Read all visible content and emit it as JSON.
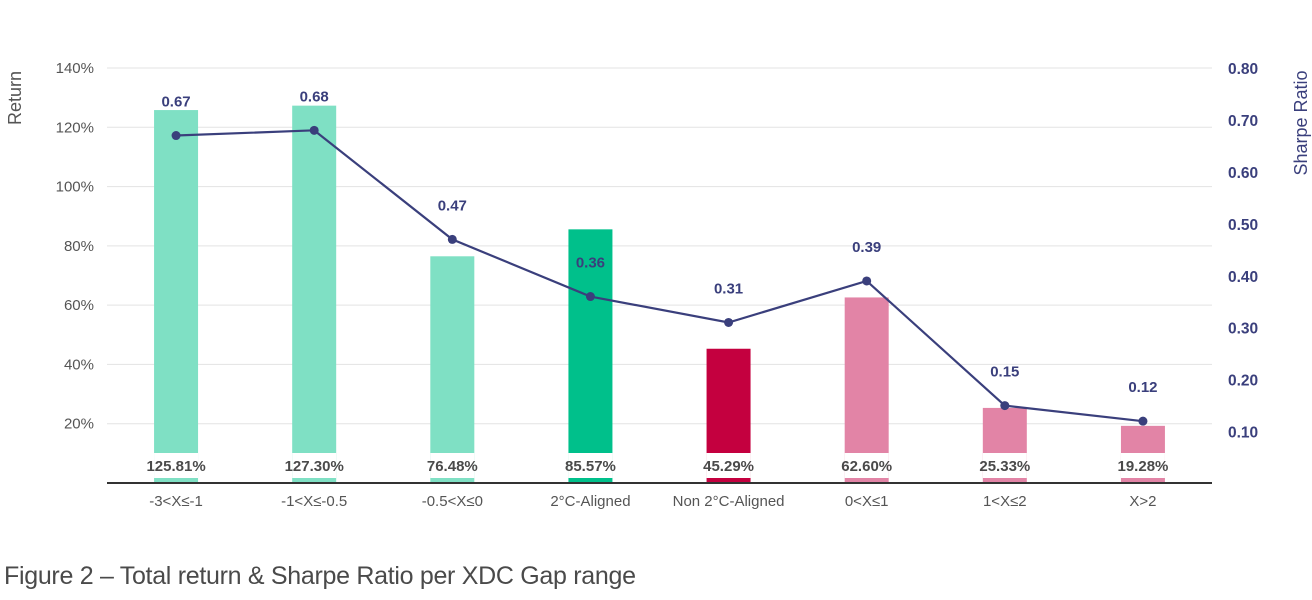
{
  "caption": "Figure 2 – Total return & Sharpe Ratio per XDC Gap range",
  "chart_data": {
    "type": "bar",
    "title": "",
    "categories": [
      "-3<X≤-1",
      "-1<X≤-0.5",
      "-0.5<X≤0",
      "2°C-Aligned",
      "Non 2°C-Aligned",
      "0<X≤1",
      "1<X≤2",
      "X>2"
    ],
    "ylabel": "Return",
    "y2label": "Sharpe Ratio",
    "ylim": [
      0,
      140
    ],
    "y_ticks": [
      "20%",
      "40%",
      "60%",
      "80%",
      "100%",
      "120%",
      "140%"
    ],
    "y2lim": [
      0.0,
      0.8
    ],
    "y2_ticks": [
      "0.10",
      "0.20",
      "0.30",
      "0.40",
      "0.50",
      "0.60",
      "0.70",
      "0.80"
    ],
    "grid": true,
    "series": [
      {
        "type": "bar",
        "axis": "left",
        "values": [
          125.81,
          127.3,
          76.48,
          85.57,
          45.29,
          62.6,
          25.33,
          19.28
        ],
        "labels": [
          "125.81%",
          "127.30%",
          "76.48%",
          "85.57%",
          "45.29%",
          "62.60%",
          "25.33%",
          "19.28%"
        ],
        "colors": [
          "#7fe0c4",
          "#7fe0c4",
          "#7fe0c4",
          "#00c08b",
          "#c4003f",
          "#e284a6",
          "#e284a6",
          "#e284a6"
        ]
      },
      {
        "type": "line",
        "axis": "right",
        "values": [
          0.67,
          0.68,
          0.47,
          0.36,
          0.31,
          0.39,
          0.15,
          0.12
        ],
        "labels": [
          "0.67",
          "0.68",
          "0.47",
          "0.36",
          "0.31",
          "0.39",
          "0.15",
          "0.12"
        ],
        "color": "#3a3f7c"
      }
    ]
  },
  "colors": {
    "axis_text": "#555555",
    "right_axis_text": "#3a3f7c",
    "grid": "#e3e3e3",
    "baseline": "#333333"
  }
}
